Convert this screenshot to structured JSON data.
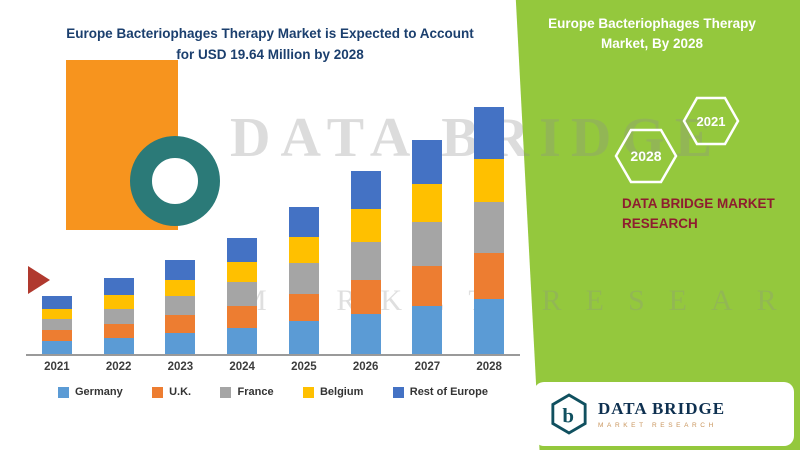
{
  "header": {
    "line1": "Europe Bacteriophages Therapy Market is Expected to Account",
    "line2": "for USD 19.64 Million by 2028"
  },
  "watermark": {
    "line1": "DATA BRIDGE",
    "line2": "MARKET RESEARCH"
  },
  "panel": {
    "title": "Europe Bacteriophages Therapy Market, By 2028",
    "hex_year_far": "2021",
    "hex_year_near": "2028",
    "brand": "DATA BRIDGE MARKET RESEARCH",
    "accent_green": "#94C83D",
    "brand_color": "#8E1D2F"
  },
  "logo_card": {
    "name": "DATA BRIDGE",
    "subtitle": "MARKET RESEARCH"
  },
  "chart_data": {
    "type": "bar",
    "stacked": true,
    "title": "Europe Bacteriophages Therapy Market is Expected to Account for USD 19.64 Million by 2028",
    "unit": "USD Million",
    "categories": [
      "2021",
      "2022",
      "2023",
      "2024",
      "2025",
      "2026",
      "2027",
      "2028"
    ],
    "series": [
      {
        "name": "Germany",
        "color": "#5B9BD5",
        "values": [
          1.0,
          1.3,
          1.7,
          2.1,
          2.6,
          3.2,
          3.8,
          4.4
        ]
      },
      {
        "name": "U.K.",
        "color": "#ED7D31",
        "values": [
          0.9,
          1.1,
          1.4,
          1.7,
          2.2,
          2.7,
          3.2,
          3.6
        ]
      },
      {
        "name": "France",
        "color": "#A5A5A5",
        "values": [
          0.9,
          1.2,
          1.5,
          1.9,
          2.4,
          3.0,
          3.5,
          4.1
        ]
      },
      {
        "name": "Belgium",
        "color": "#FFC000",
        "values": [
          0.8,
          1.1,
          1.3,
          1.6,
          2.1,
          2.6,
          3.0,
          3.4
        ]
      },
      {
        "name": "Rest of Europe",
        "color": "#4472C4",
        "values": [
          1.0,
          1.3,
          1.6,
          1.9,
          2.4,
          3.0,
          3.5,
          4.14
        ]
      }
    ],
    "totals": [
      4.6,
      6.0,
      7.5,
      9.2,
      11.7,
      14.6,
      17.0,
      19.64
    ],
    "ylim": [
      0,
      20
    ],
    "grid": false,
    "legend_position": "bottom",
    "y_axis_shown": false
  }
}
